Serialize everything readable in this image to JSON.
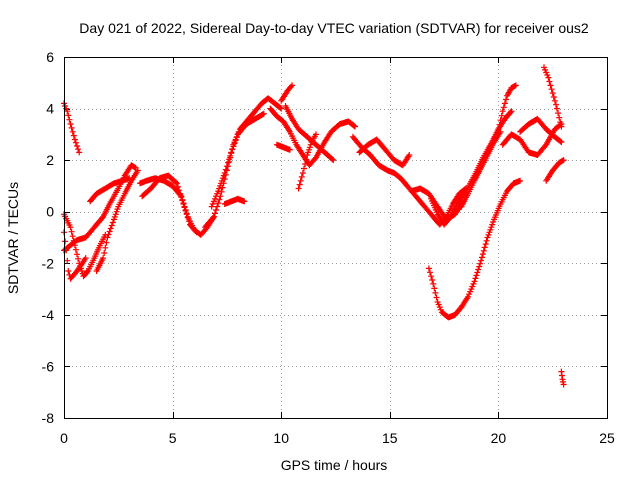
{
  "chart_data": {
    "type": "scatter",
    "title": "Day 021 of 2022, Sidereal Day-to-day VTEC variation (SDTVAR) for receiver ous2",
    "xlabel": "GPS time / hours",
    "ylabel": "SDTVAR / TECUs",
    "xlim": [
      0,
      25
    ],
    "ylim": [
      -8,
      6
    ],
    "x_ticks": [
      0,
      5,
      10,
      15,
      20,
      25
    ],
    "y_ticks": [
      -8,
      -6,
      -4,
      -2,
      0,
      2,
      4,
      6
    ],
    "grid": true,
    "marker": "plus",
    "color": "#ff0000",
    "series": [
      {
        "points": [
          [
            0.0,
            4.2
          ],
          [
            0.15,
            3.9
          ],
          [
            0.3,
            3.4
          ],
          [
            0.5,
            2.8
          ],
          [
            0.7,
            2.3
          ]
        ]
      },
      {
        "points": [
          [
            0.0,
            -0.1
          ],
          [
            0.3,
            -0.6
          ],
          [
            0.5,
            -1.3
          ],
          [
            0.7,
            -2.0
          ],
          [
            0.9,
            -2.5
          ],
          [
            1.1,
            -2.3
          ],
          [
            1.4,
            -1.8
          ],
          [
            1.6,
            -1.4
          ],
          [
            1.9,
            -0.9
          ]
        ]
      },
      {
        "points": [
          [
            0.0,
            -0.8
          ],
          [
            0.1,
            -1.5
          ],
          [
            0.2,
            -2.3
          ],
          [
            0.3,
            -2.6
          ],
          [
            0.6,
            -2.3
          ],
          [
            1.0,
            -1.8
          ]
        ]
      },
      {
        "points": [
          [
            0.0,
            -1.5
          ],
          [
            0.3,
            -1.3
          ],
          [
            0.6,
            -1.1
          ],
          [
            1.0,
            -1.0
          ],
          [
            1.4,
            -0.6
          ],
          [
            1.8,
            -0.2
          ],
          [
            2.1,
            0.3
          ],
          [
            2.5,
            0.9
          ],
          [
            2.8,
            1.4
          ],
          [
            3.1,
            1.8
          ],
          [
            3.3,
            1.7
          ]
        ]
      },
      {
        "points": [
          [
            1.5,
            -2.3
          ],
          [
            1.8,
            -1.8
          ],
          [
            2.0,
            -1.0
          ],
          [
            2.3,
            -0.3
          ],
          [
            2.5,
            0.2
          ],
          [
            2.8,
            0.7
          ],
          [
            3.1,
            1.2
          ],
          [
            3.4,
            1.6
          ]
        ]
      },
      {
        "points": [
          [
            1.2,
            0.4
          ],
          [
            1.5,
            0.7
          ],
          [
            1.9,
            0.9
          ],
          [
            2.3,
            1.1
          ],
          [
            2.7,
            1.2
          ],
          [
            3.0,
            1.3
          ]
        ]
      },
      {
        "points": [
          [
            3.5,
            1.1
          ],
          [
            3.8,
            1.2
          ],
          [
            4.2,
            1.3
          ],
          [
            4.6,
            1.2
          ],
          [
            5.0,
            1.0
          ],
          [
            5.4,
            0.6
          ],
          [
            5.7,
            -0.2
          ],
          [
            6.0,
            -0.7
          ],
          [
            6.3,
            -0.9
          ],
          [
            6.6,
            -0.6
          ],
          [
            6.9,
            -0.2
          ]
        ]
      },
      {
        "points": [
          [
            3.6,
            0.6
          ],
          [
            4.0,
            0.9
          ],
          [
            4.4,
            1.3
          ],
          [
            4.8,
            1.4
          ],
          [
            5.2,
            1.1
          ],
          [
            5.5,
            0.3
          ],
          [
            5.8,
            -0.5
          ],
          [
            6.1,
            -0.8
          ]
        ]
      },
      {
        "points": [
          [
            6.5,
            -0.6
          ],
          [
            6.9,
            -0.2
          ],
          [
            7.2,
            0.6
          ],
          [
            7.5,
            1.6
          ],
          [
            7.8,
            2.6
          ],
          [
            8.1,
            3.2
          ],
          [
            8.5,
            3.6
          ],
          [
            8.8,
            3.9
          ],
          [
            9.1,
            4.2
          ],
          [
            9.4,
            4.4
          ],
          [
            9.7,
            4.2
          ],
          [
            10.0,
            4.0
          ]
        ]
      },
      {
        "points": [
          [
            6.8,
            0.2
          ],
          [
            7.1,
            0.8
          ],
          [
            7.4,
            1.5
          ],
          [
            7.7,
            2.3
          ],
          [
            8.0,
            3.0
          ],
          [
            8.4,
            3.4
          ],
          [
            8.8,
            3.6
          ],
          [
            9.2,
            3.8
          ]
        ]
      },
      {
        "points": [
          [
            7.4,
            0.3
          ],
          [
            7.7,
            0.4
          ],
          [
            8.0,
            0.5
          ],
          [
            8.3,
            0.4
          ]
        ]
      },
      {
        "points": [
          [
            10.0,
            4.3
          ],
          [
            10.3,
            4.7
          ],
          [
            10.5,
            4.9
          ]
        ]
      },
      {
        "points": [
          [
            9.5,
            4.0
          ],
          [
            9.8,
            3.7
          ],
          [
            10.1,
            3.5
          ],
          [
            10.4,
            3.1
          ],
          [
            10.7,
            2.6
          ],
          [
            11.0,
            2.2
          ],
          [
            11.3,
            1.8
          ],
          [
            11.6,
            2.1
          ],
          [
            12.0,
            2.7
          ],
          [
            12.3,
            3.1
          ],
          [
            12.7,
            3.4
          ],
          [
            13.1,
            3.5
          ],
          [
            13.4,
            3.3
          ]
        ]
      },
      {
        "points": [
          [
            10.2,
            4.1
          ],
          [
            10.5,
            3.6
          ],
          [
            10.8,
            3.2
          ],
          [
            11.2,
            2.9
          ],
          [
            11.6,
            2.6
          ],
          [
            12.0,
            2.3
          ],
          [
            12.4,
            2.0
          ]
        ]
      },
      {
        "points": [
          [
            10.8,
            0.9
          ],
          [
            11.0,
            1.5
          ],
          [
            11.2,
            2.2
          ],
          [
            11.4,
            2.7
          ],
          [
            11.6,
            3.0
          ]
        ]
      },
      {
        "points": [
          [
            9.8,
            2.6
          ],
          [
            10.1,
            2.5
          ],
          [
            10.4,
            2.4
          ]
        ]
      },
      {
        "points": [
          [
            13.3,
            2.9
          ],
          [
            13.7,
            2.5
          ],
          [
            14.1,
            2.2
          ],
          [
            14.5,
            1.8
          ],
          [
            14.9,
            1.6
          ],
          [
            15.2,
            1.5
          ],
          [
            15.5,
            1.3
          ],
          [
            15.8,
            1.0
          ],
          [
            16.2,
            0.6
          ],
          [
            16.6,
            0.2
          ],
          [
            17.0,
            -0.2
          ],
          [
            17.3,
            -0.5
          ],
          [
            17.6,
            -0.2
          ],
          [
            17.9,
            0.3
          ],
          [
            18.2,
            0.7
          ],
          [
            18.5,
            0.9
          ]
        ]
      },
      {
        "points": [
          [
            13.6,
            2.3
          ],
          [
            14.0,
            2.6
          ],
          [
            14.4,
            2.8
          ],
          [
            14.8,
            2.4
          ],
          [
            15.2,
            2.0
          ],
          [
            15.6,
            1.8
          ],
          [
            15.9,
            2.2
          ]
        ]
      },
      {
        "points": [
          [
            16.0,
            0.8
          ],
          [
            16.4,
            0.9
          ],
          [
            16.8,
            0.7
          ],
          [
            17.2,
            0.2
          ],
          [
            17.6,
            -0.3
          ],
          [
            18.0,
            -0.1
          ],
          [
            18.4,
            0.4
          ]
        ]
      },
      {
        "points": [
          [
            16.9,
            0.5
          ],
          [
            17.2,
            -0.1
          ],
          [
            17.5,
            -0.5
          ],
          [
            17.8,
            -0.2
          ],
          [
            18.1,
            0.3
          ],
          [
            18.5,
            0.8
          ],
          [
            18.9,
            1.4
          ],
          [
            19.3,
            2.1
          ],
          [
            19.7,
            2.7
          ],
          [
            20.0,
            3.2
          ],
          [
            20.3,
            3.6
          ],
          [
            20.6,
            3.9
          ]
        ]
      },
      {
        "points": [
          [
            16.8,
            -2.2
          ],
          [
            17.0,
            -2.8
          ],
          [
            17.2,
            -3.5
          ],
          [
            17.4,
            -3.9
          ],
          [
            17.7,
            -4.1
          ],
          [
            18.0,
            -4.0
          ],
          [
            18.3,
            -3.7
          ],
          [
            18.6,
            -3.3
          ],
          [
            18.9,
            -2.7
          ],
          [
            19.2,
            -1.9
          ],
          [
            19.5,
            -1.0
          ],
          [
            19.8,
            -0.3
          ],
          [
            20.1,
            0.3
          ],
          [
            20.4,
            0.8
          ],
          [
            20.7,
            1.1
          ],
          [
            21.0,
            1.2
          ]
        ]
      },
      {
        "points": [
          [
            18.3,
            0.2
          ],
          [
            18.6,
            0.7
          ],
          [
            18.9,
            1.2
          ],
          [
            19.2,
            1.7
          ],
          [
            19.5,
            2.2
          ],
          [
            19.8,
            2.7
          ],
          [
            20.1,
            3.1
          ]
        ]
      },
      {
        "points": [
          [
            20.0,
            3.2
          ],
          [
            20.2,
            3.9
          ],
          [
            20.4,
            4.5
          ],
          [
            20.6,
            4.8
          ],
          [
            20.8,
            4.9
          ]
        ]
      },
      {
        "points": [
          [
            20.2,
            2.6
          ],
          [
            20.6,
            3.0
          ],
          [
            21.0,
            2.8
          ],
          [
            21.4,
            2.3
          ],
          [
            21.8,
            2.2
          ],
          [
            22.2,
            2.6
          ],
          [
            22.6,
            3.2
          ],
          [
            22.9,
            3.4
          ]
        ]
      },
      {
        "points": [
          [
            21.0,
            3.1
          ],
          [
            21.4,
            3.4
          ],
          [
            21.8,
            3.6
          ],
          [
            22.2,
            3.2
          ],
          [
            22.6,
            2.9
          ],
          [
            22.9,
            2.7
          ]
        ]
      },
      {
        "points": [
          [
            22.1,
            5.6
          ],
          [
            22.3,
            5.2
          ],
          [
            22.5,
            4.6
          ],
          [
            22.7,
            4.0
          ],
          [
            22.9,
            3.3
          ]
        ]
      },
      {
        "points": [
          [
            22.2,
            1.2
          ],
          [
            22.5,
            1.6
          ],
          [
            22.8,
            1.9
          ],
          [
            23.0,
            2.0
          ]
        ]
      },
      {
        "points": [
          [
            22.9,
            -6.2
          ],
          [
            22.95,
            -6.5
          ],
          [
            23.0,
            -6.7
          ]
        ]
      }
    ]
  }
}
